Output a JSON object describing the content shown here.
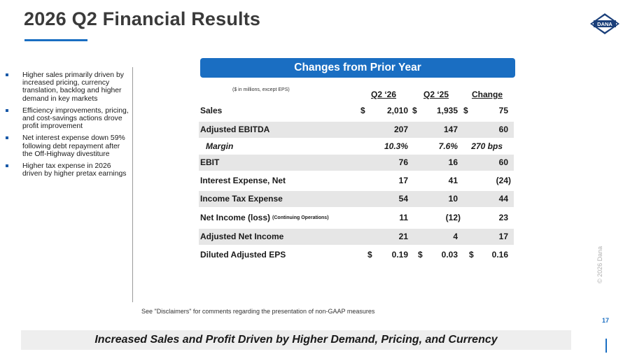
{
  "title": "2026 Q2 Financial Results",
  "logo": {
    "text": "DANA"
  },
  "bullets": [
    "Higher sales primarily driven by increased pricing, currency translation, backlog and higher demand in key markets",
    "Efficiency improvements, pricing, and cost-savings actions drove profit improvement",
    "Net interest expense down 59% following debt repayment after the Off-Highway divestiture",
    "Higher tax expense in 2026 driven by higher pretax earnings"
  ],
  "banner": "Changes from Prior Year",
  "units_note": "($ in millions, except EPS)",
  "columns": {
    "q2_26": "Q2 ‘26",
    "q2_25": "Q2 ‘25",
    "change": "Change"
  },
  "rows": [
    {
      "label": "Sales",
      "q2_26": "2,010",
      "q2_25": "1,935",
      "change": "75",
      "dollars": true
    },
    {
      "label": "Adjusted EBITDA",
      "q2_26": "207",
      "q2_25": "147",
      "change": "60"
    },
    {
      "label": "Margin",
      "q2_26": "10.3%",
      "q2_25": "7.6%",
      "change": "270 bps"
    },
    {
      "label": "EBIT",
      "q2_26": "76",
      "q2_25": "16",
      "change": "60"
    },
    {
      "label": "Interest Expense, Net",
      "q2_26": "17",
      "q2_25": "41",
      "change": "(24)"
    },
    {
      "label": "Income Tax Expense",
      "q2_26": "54",
      "q2_25": "10",
      "change": "44"
    },
    {
      "label": "Net Income (loss)",
      "sublabel": "(Continuing Operations)",
      "q2_26": "11",
      "q2_25": "(12)",
      "change": "23"
    },
    {
      "label": "Adjusted Net Income",
      "q2_26": "21",
      "q2_25": "4",
      "change": "17"
    },
    {
      "label": "Diluted Adjusted EPS",
      "q2_26": "0.19",
      "q2_25": "0.03",
      "change": "0.16",
      "dollars": true
    }
  ],
  "dollar_sign": "$",
  "disclaimer": "See \"Disclaimers\" for comments regarding the presentation of non-GAAP measures",
  "copyright": "© 2026 Dana",
  "page_number": "17",
  "footer": "Increased Sales and Profit Driven by Higher Demand, Pricing, and Currency",
  "colors": {
    "accent": "#1a6ec2",
    "row_shade": "#e6e6e6"
  }
}
